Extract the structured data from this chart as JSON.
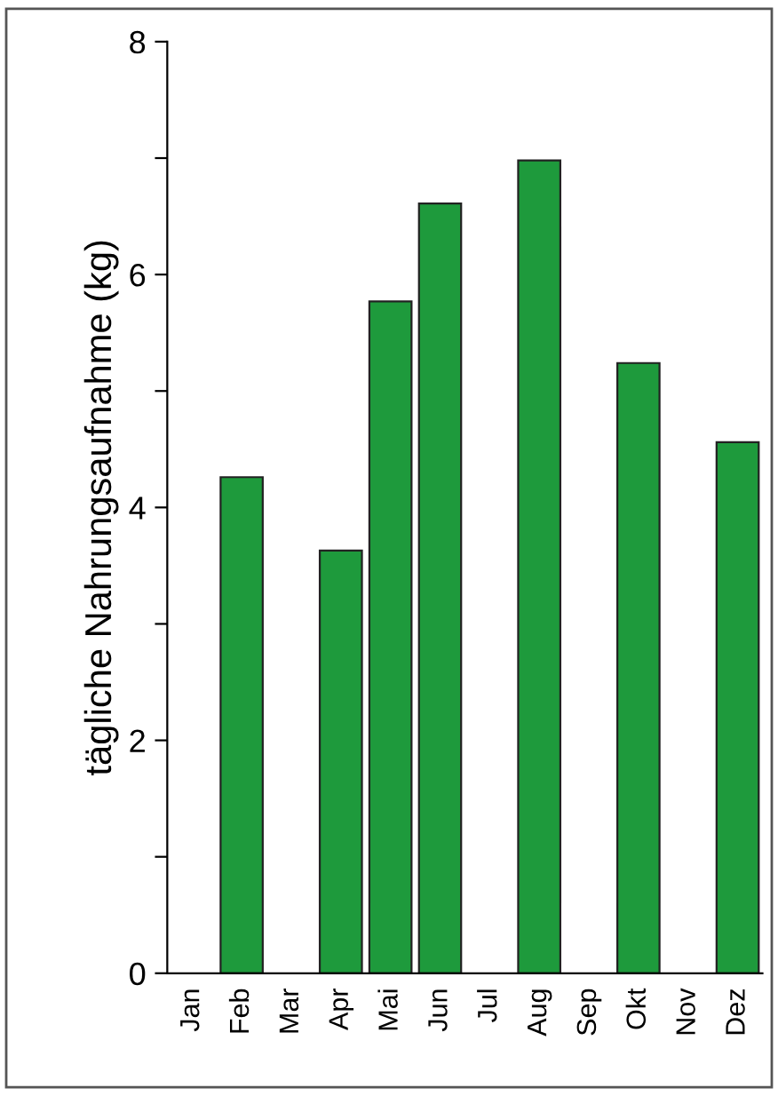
{
  "chart_data": {
    "type": "bar",
    "ylabel": "tägliche Nahrungsaufnahme (kg)",
    "categories": [
      "Jan",
      "Feb",
      "Mar",
      "Apr",
      "Mai",
      "Jun",
      "Jul",
      "Aug",
      "Sep",
      "Okt",
      "Nov",
      "Dez"
    ],
    "values": [
      null,
      4.26,
      null,
      3.63,
      5.77,
      6.61,
      null,
      6.98,
      null,
      5.24,
      null,
      4.56
    ],
    "color": "#1e9a3c",
    "ylim": [
      0,
      8
    ],
    "yticks": [
      0,
      {
        "value": 1,
        "label": null
      },
      2,
      {
        "value": 3,
        "label": null
      },
      4,
      {
        "value": 5,
        "label": null
      },
      6,
      {
        "value": 7,
        "label": null
      },
      8
    ],
    "grid": false
  }
}
